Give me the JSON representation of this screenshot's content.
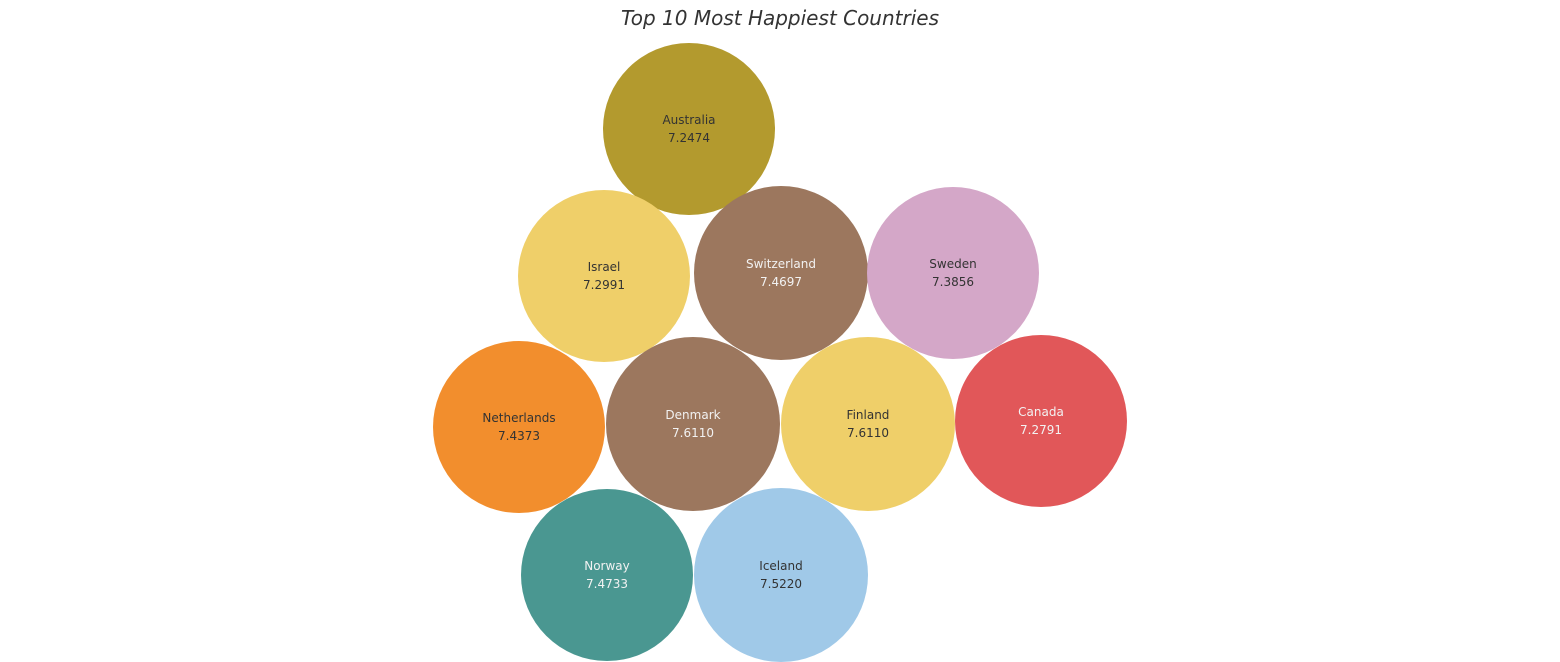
{
  "chart_data": {
    "type": "bubble",
    "title": "Top 10 Most Happiest Countries",
    "bubbles": [
      {
        "country": "Australia",
        "value": "7.2474",
        "color": "#b39a2e",
        "text_color": "#333333"
      },
      {
        "country": "Israel",
        "value": "7.2991",
        "color": "#efcf69",
        "text_color": "#333333"
      },
      {
        "country": "Switzerland",
        "value": "7.4697",
        "color": "#9c775e",
        "text_color": "#f2f2f2"
      },
      {
        "country": "Sweden",
        "value": "7.3856",
        "color": "#d4a7c8",
        "text_color": "#333333"
      },
      {
        "country": "Netherlands",
        "value": "7.4373",
        "color": "#f28e2d",
        "text_color": "#333333"
      },
      {
        "country": "Denmark",
        "value": "7.6110",
        "color": "#9c775e",
        "text_color": "#f2f2f2"
      },
      {
        "country": "Finland",
        "value": "7.6110",
        "color": "#efcf69",
        "text_color": "#333333"
      },
      {
        "country": "Canada",
        "value": "7.2791",
        "color": "#e15759",
        "text_color": "#f2f2f2"
      },
      {
        "country": "Norway",
        "value": "7.4733",
        "color": "#4a9791",
        "text_color": "#f2f2f2"
      },
      {
        "country": "Iceland",
        "value": "7.5220",
        "color": "#a0c9e8",
        "text_color": "#333333"
      }
    ]
  }
}
